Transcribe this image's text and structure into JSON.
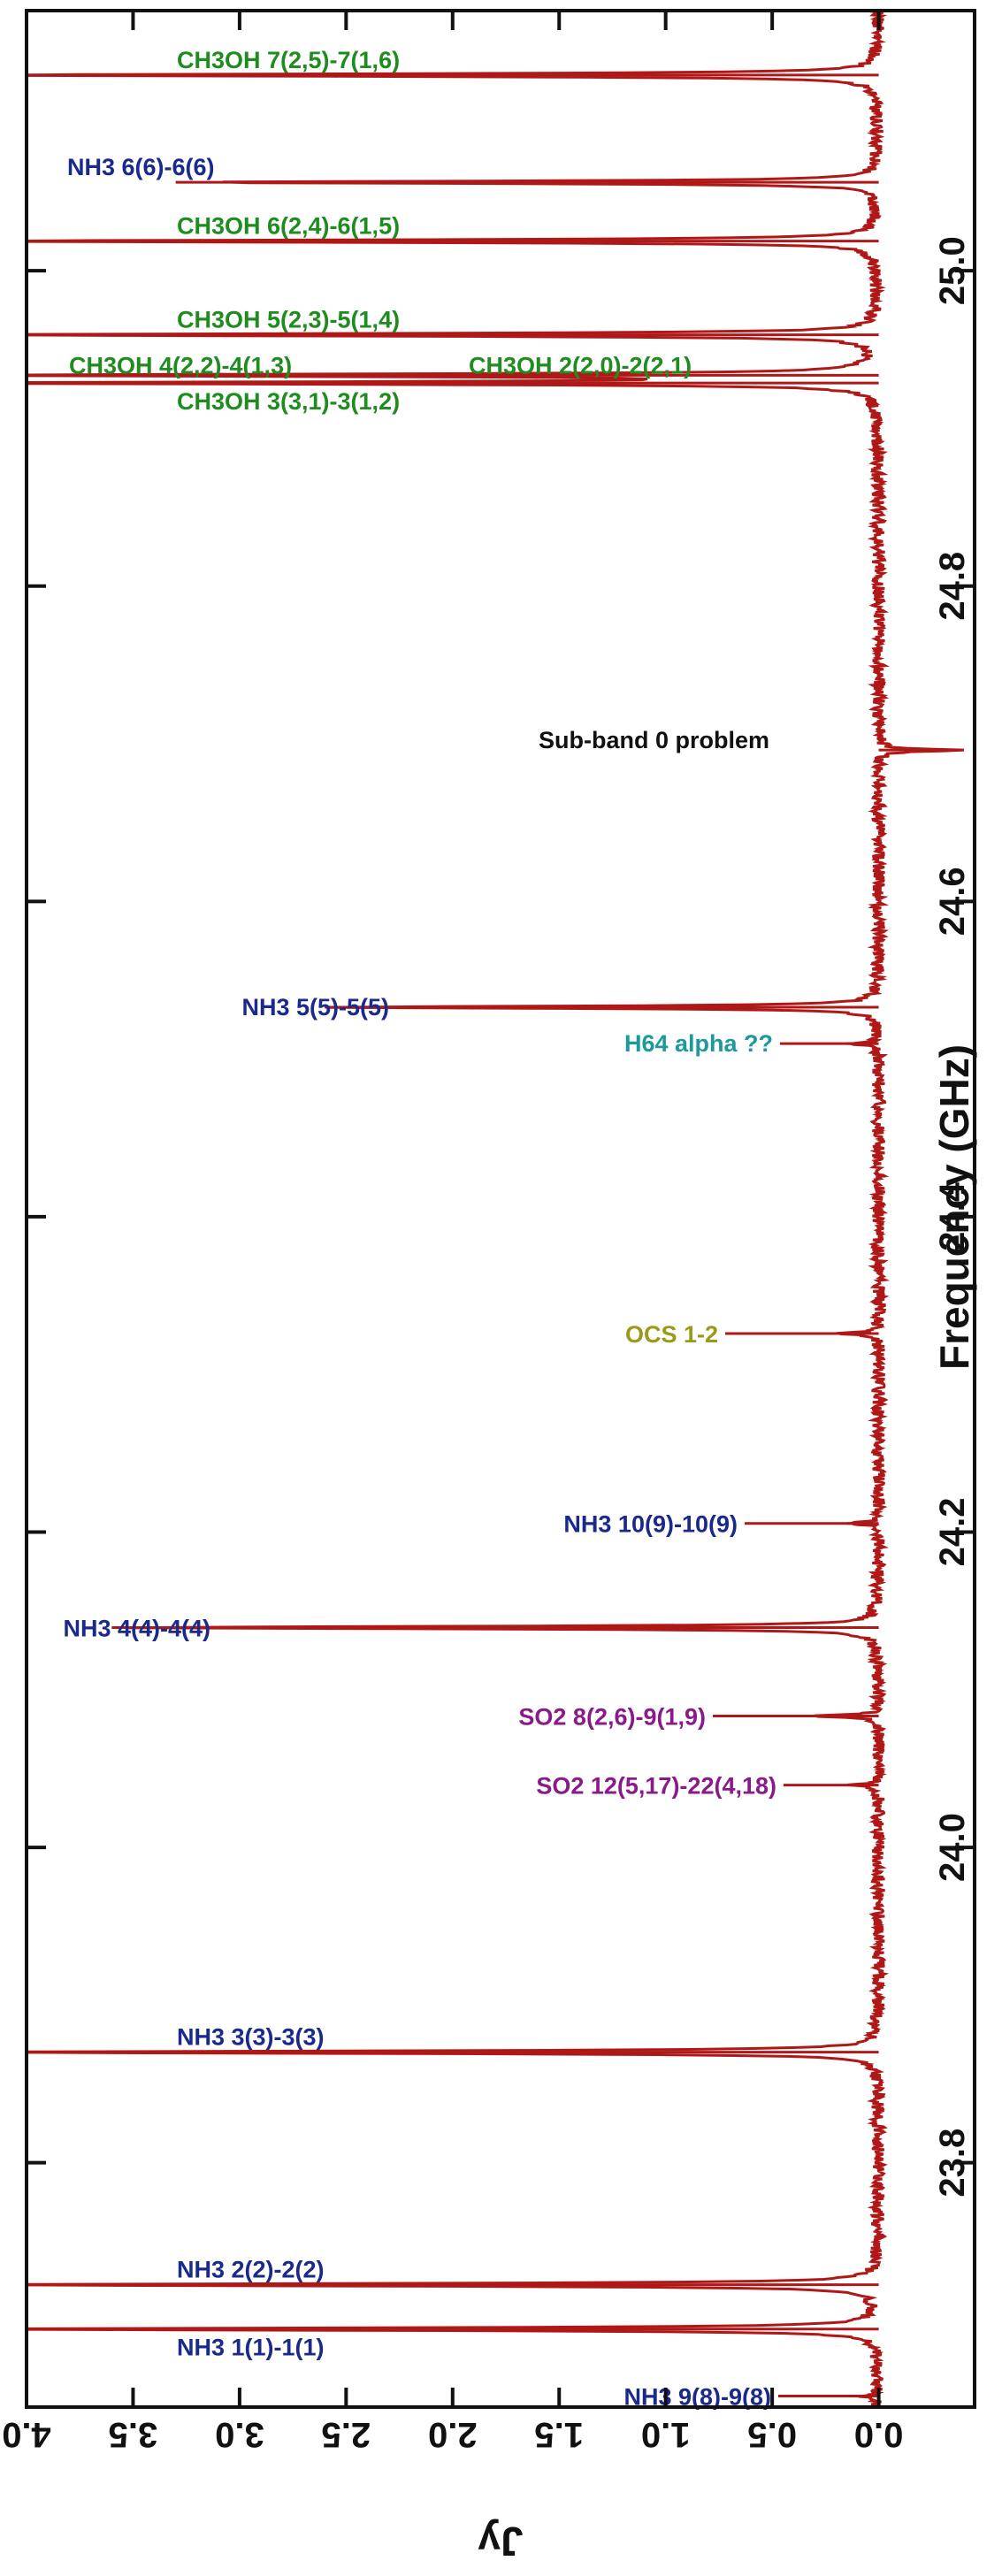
{
  "chart_data": {
    "type": "line",
    "title": "",
    "xlabel": "Frequency (GHz)",
    "ylabel": "Jy",
    "xlim": [
      23.645,
      25.165
    ],
    "ylim": [
      -0.45,
      4.0
    ],
    "x_ticks": [
      "23.8",
      "24.0",
      "24.2",
      "24.4",
      "24.6",
      "24.8",
      "25.0"
    ],
    "x_tick_values": [
      23.8,
      24.0,
      24.2,
      24.4,
      24.6,
      24.8,
      25.0
    ],
    "y_ticks": [
      "0.0",
      "0.5",
      "1.0",
      "1.5",
      "2.0",
      "2.5",
      "3.0",
      "3.5",
      "4.0"
    ],
    "y_tick_values": [
      0.0,
      0.5,
      1.0,
      1.5,
      2.0,
      2.5,
      3.0,
      3.5,
      4.0
    ],
    "orientation": "rotated: frequency increases upward along the right edge, flux density increases to the left",
    "series": [
      {
        "color": "#b01818",
        "baseline": 0.0,
        "peaks": [
          {
            "x": 23.652,
            "y": 0.08
          },
          {
            "x": 23.6945,
            "y": 4.4
          },
          {
            "x": 23.7226,
            "y": 4.4
          },
          {
            "x": 23.8701,
            "y": 4.4
          },
          {
            "x": 24.0395,
            "y": 0.15
          },
          {
            "x": 24.0833,
            "y": 0.35
          },
          {
            "x": 24.1394,
            "y": 3.6
          },
          {
            "x": 24.2055,
            "y": 0.15
          },
          {
            "x": 24.3259,
            "y": 0.2
          },
          {
            "x": 24.5098,
            "y": 0.15
          },
          {
            "x": 24.5329,
            "y": 2.6
          },
          {
            "x": 24.696,
            "y": -0.4
          },
          {
            "x": 24.9288,
            "y": 4.4
          },
          {
            "x": 24.9337,
            "y": 4.4
          },
          {
            "x": 24.9594,
            "y": 4.4
          },
          {
            "x": 25.0188,
            "y": 4.4
          },
          {
            "x": 25.0561,
            "y": 3.3
          },
          {
            "x": 25.1241,
            "y": 4.4
          }
        ]
      }
    ],
    "annotations": [
      {
        "text": "CH3OH 7(2,5)-7(1,6)",
        "x": 25.1241,
        "color": "#1e8c1e"
      },
      {
        "text": "NH3 6(6)-6(6)",
        "x": 25.0561,
        "color": "#1a2a8c"
      },
      {
        "text": "CH3OH 6(2,4)-6(1,5)",
        "x": 25.0188,
        "color": "#1e8c1e"
      },
      {
        "text": "CH3OH 5(2,3)-5(1,4)",
        "x": 24.9594,
        "color": "#1e8c1e"
      },
      {
        "text": "CH3OH 4(2,2)-4(1,3)",
        "x": 24.9337,
        "color": "#1e8c1e"
      },
      {
        "text": "CH3OH 2(2,0)-2(2,1)",
        "x": 24.9337,
        "color": "#1e8c1e"
      },
      {
        "text": "CH3OH 3(3,1)-3(1,2)",
        "x": 24.9288,
        "color": "#1e8c1e"
      },
      {
        "text": "Sub-band 0 problem",
        "x": 24.696,
        "color": "#111111"
      },
      {
        "text": "NH3 5(5)-5(5)",
        "x": 24.5329,
        "color": "#1a2a8c"
      },
      {
        "text": "H64 alpha ??",
        "x": 24.5098,
        "color": "#1a9a9a"
      },
      {
        "text": "OCS 1-2",
        "x": 24.3259,
        "color": "#9a9a1a"
      },
      {
        "text": "NH3 10(9)-10(9)",
        "x": 24.2055,
        "color": "#1a2a8c"
      },
      {
        "text": "NH3 4(4)-4(4)",
        "x": 24.1394,
        "color": "#1a2a8c"
      },
      {
        "text": "SO2 8(2,6)-9(1,9)",
        "x": 24.0833,
        "color": "#8a1a8a"
      },
      {
        "text": "SO2 12(5,17)-22(4,18)",
        "x": 24.0395,
        "color": "#8a1a8a"
      },
      {
        "text": "NH3 3(3)-3(3)",
        "x": 23.8701,
        "color": "#1a2a8c"
      },
      {
        "text": "NH3 2(2)-2(2)",
        "x": 23.7226,
        "color": "#1a2a8c"
      },
      {
        "text": "NH3 1(1)-1(1)",
        "x": 23.6945,
        "color": "#1a2a8c"
      },
      {
        "text": "NH3 9(8)-9(8)",
        "x": 23.652,
        "color": "#1a2a8c"
      }
    ]
  }
}
